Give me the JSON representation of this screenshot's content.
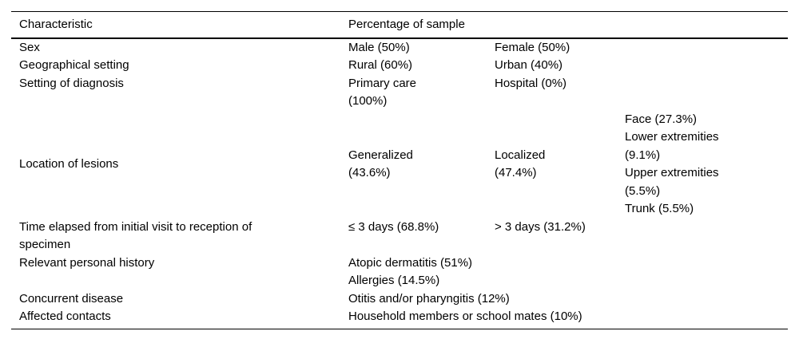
{
  "table": {
    "header": {
      "characteristic": "Characteristic",
      "percentage": "Percentage of sample"
    },
    "rows": [
      {
        "label": "Sex",
        "c1": "Male (50%)",
        "c2": "Female (50%)",
        "c3": ""
      },
      {
        "label": "Geographical setting",
        "c1": "Rural (60%)",
        "c2": "Urban (40%)",
        "c3": ""
      },
      {
        "label": "Setting of diagnosis",
        "c1": "Primary care\n(100%)",
        "c2": "Hospital (0%)",
        "c3": ""
      },
      {
        "label": "Location of lesions",
        "c1": "Generalized\n(43.6%)",
        "c2": "Localized\n(47.4%)",
        "c3": "Face (27.3%)\nLower extremities\n(9.1%)\nUpper extremities\n(5.5%)\nTrunk (5.5%)"
      },
      {
        "label": "Time elapsed from initial visit to reception of\nspecimen",
        "c1": "≤ 3 days (68.8%)",
        "c2": "> 3 days (31.2%)",
        "c3": ""
      },
      {
        "label": "Relevant personal history",
        "c1": "Atopic dermatitis (51%)\nAllergies (14.5%)",
        "c2": "",
        "c3": ""
      },
      {
        "label": "Concurrent disease",
        "c1": "Otitis and/or pharyngitis (12%)",
        "c2": "",
        "c3": ""
      },
      {
        "label": "Affected contacts",
        "c1": "Household members or school mates (10%)",
        "c2": "",
        "c3": ""
      }
    ],
    "text_color": "#000000",
    "rule_color": "#000000",
    "background_color": "#ffffff"
  }
}
